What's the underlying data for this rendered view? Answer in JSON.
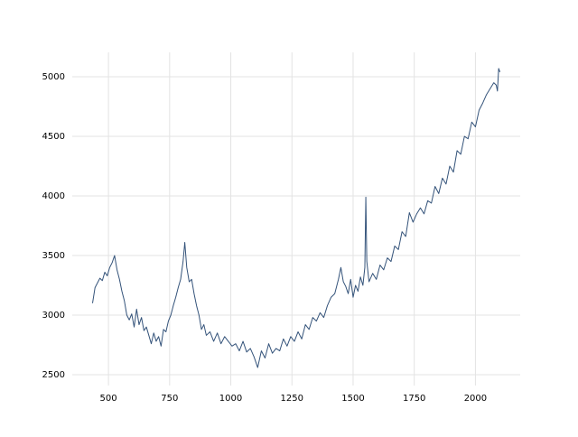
{
  "chart_data": {
    "type": "line",
    "color": "#34537a",
    "grid": true,
    "xlim": [
      352,
      2183
    ],
    "ylim": [
      2409,
      5205
    ],
    "xticks": [
      500,
      750,
      1000,
      1250,
      1500,
      1750,
      2000
    ],
    "yticks": [
      2500,
      3000,
      3500,
      4000,
      4500,
      5000
    ],
    "x": [
      435,
      445,
      455,
      465,
      475,
      485,
      495,
      505,
      515,
      525,
      535,
      545,
      555,
      565,
      575,
      585,
      595,
      605,
      615,
      625,
      635,
      645,
      655,
      665,
      675,
      685,
      695,
      705,
      715,
      725,
      735,
      745,
      755,
      765,
      775,
      785,
      795,
      805,
      812,
      820,
      830,
      840,
      850,
      860,
      870,
      880,
      890,
      900,
      915,
      930,
      945,
      960,
      975,
      990,
      1005,
      1020,
      1035,
      1050,
      1065,
      1080,
      1095,
      1110,
      1125,
      1140,
      1155,
      1170,
      1185,
      1200,
      1215,
      1230,
      1245,
      1260,
      1275,
      1290,
      1305,
      1320,
      1335,
      1350,
      1365,
      1380,
      1395,
      1410,
      1425,
      1440,
      1450,
      1460,
      1470,
      1480,
      1490,
      1500,
      1510,
      1520,
      1530,
      1540,
      1548,
      1552,
      1556,
      1565,
      1580,
      1595,
      1610,
      1625,
      1640,
      1655,
      1670,
      1685,
      1700,
      1715,
      1730,
      1745,
      1760,
      1775,
      1790,
      1805,
      1820,
      1835,
      1850,
      1865,
      1880,
      1895,
      1910,
      1925,
      1940,
      1955,
      1970,
      1985,
      2000,
      2015,
      2030,
      2045,
      2060,
      2075,
      2085,
      2090,
      2095,
      2100
    ],
    "values": [
      3100,
      3230,
      3270,
      3310,
      3290,
      3360,
      3330,
      3400,
      3440,
      3500,
      3380,
      3300,
      3200,
      3120,
      3000,
      2960,
      3010,
      2900,
      3050,
      2920,
      2980,
      2870,
      2900,
      2830,
      2760,
      2850,
      2780,
      2820,
      2740,
      2880,
      2860,
      2950,
      3000,
      3080,
      3150,
      3230,
      3300,
      3450,
      3610,
      3400,
      3280,
      3300,
      3180,
      3080,
      3000,
      2880,
      2920,
      2830,
      2860,
      2780,
      2850,
      2760,
      2820,
      2780,
      2740,
      2760,
      2700,
      2780,
      2690,
      2720,
      2650,
      2560,
      2700,
      2640,
      2760,
      2680,
      2720,
      2700,
      2800,
      2740,
      2820,
      2780,
      2860,
      2800,
      2920,
      2880,
      2980,
      2950,
      3020,
      2980,
      3080,
      3150,
      3180,
      3300,
      3400,
      3280,
      3240,
      3180,
      3300,
      3150,
      3250,
      3200,
      3320,
      3250,
      3400,
      3990,
      3450,
      3280,
      3350,
      3300,
      3420,
      3380,
      3480,
      3450,
      3580,
      3550,
      3700,
      3660,
      3860,
      3780,
      3850,
      3900,
      3850,
      3960,
      3940,
      4080,
      4020,
      4150,
      4100,
      4250,
      4200,
      4380,
      4350,
      4500,
      4480,
      4620,
      4580,
      4720,
      4780,
      4850,
      4900,
      4950,
      4930,
      4880,
      5070,
      5040
    ]
  }
}
